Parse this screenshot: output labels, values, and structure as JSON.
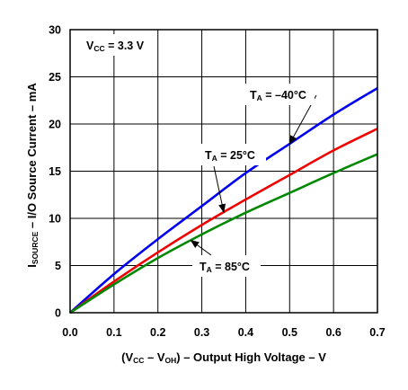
{
  "chart_data": {
    "type": "line",
    "xlabel_parts": [
      "(V",
      "CC",
      " – V",
      "OH",
      ") – Output High Voltage – V"
    ],
    "ylabel_parts": [
      "I",
      "SOURCE",
      " – I/O Source Current – mA"
    ],
    "xlim": [
      0.0,
      0.7
    ],
    "ylim": [
      0,
      30
    ],
    "xticks": [
      "0.0",
      "0.1",
      "0.2",
      "0.3",
      "0.4",
      "0.5",
      "0.6",
      "0.7"
    ],
    "yticks": [
      "0",
      "5",
      "10",
      "15",
      "20",
      "25",
      "30"
    ],
    "grid": true,
    "condition_label_parts": [
      "V",
      "CC",
      " = 3.3 V"
    ],
    "series": [
      {
        "name": "T_A = –40°C",
        "label_parts": [
          "T",
          "A",
          " = –40°C"
        ],
        "color": "#0000ee",
        "x": [
          0.0,
          0.1,
          0.2,
          0.3,
          0.4,
          0.5,
          0.6,
          0.7
        ],
        "y": [
          0,
          4.1,
          7.8,
          11.3,
          14.8,
          17.9,
          21.0,
          23.8
        ]
      },
      {
        "name": "T_A = 25°C",
        "label_parts": [
          "T",
          "A",
          " = 25°C"
        ],
        "color": "#ee0000",
        "x": [
          0.0,
          0.1,
          0.2,
          0.3,
          0.4,
          0.5,
          0.6,
          0.7
        ],
        "y": [
          0,
          3.3,
          6.4,
          9.3,
          12.0,
          14.6,
          17.2,
          19.5
        ]
      },
      {
        "name": "T_A = 85°C",
        "label_parts": [
          "T",
          "A",
          " = 85°C"
        ],
        "color": "#008800",
        "x": [
          0.0,
          0.1,
          0.2,
          0.3,
          0.4,
          0.5,
          0.6,
          0.7
        ],
        "y": [
          0,
          3.0,
          5.8,
          8.3,
          10.6,
          12.7,
          14.8,
          16.8
        ]
      }
    ]
  }
}
